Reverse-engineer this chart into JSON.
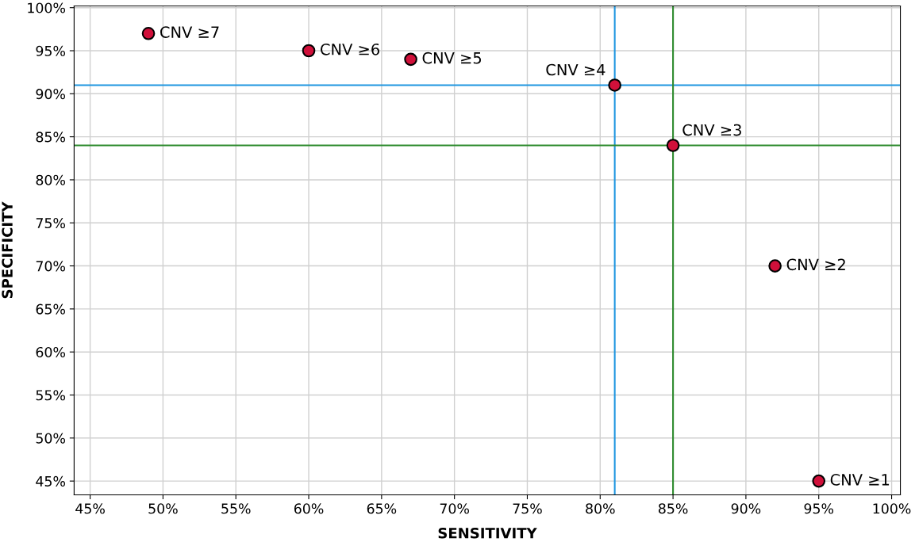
{
  "chart_data": {
    "type": "scatter",
    "xlabel": "SENSITIVITY",
    "ylabel": "SPECIFICITY",
    "series": [
      {
        "color": "#d0103a",
        "x": [
          49,
          60,
          67,
          81,
          85,
          92,
          95
        ],
        "values": [
          97,
          95,
          94,
          91,
          84,
          70,
          45
        ]
      }
    ],
    "marker": "circle",
    "annotations": [
      {
        "text": "CNV ≥7",
        "x": 49,
        "y": 97
      },
      {
        "text": "CNV ≥6",
        "x": 60,
        "y": 95
      },
      {
        "text": "CNV ≥5",
        "x": 67,
        "y": 94
      },
      {
        "text": "CNV ≥4",
        "x": 81,
        "y": 91
      },
      {
        "text": "CNV ≥3",
        "x": 85,
        "y": 84
      },
      {
        "text": "CNV ≥2",
        "x": 92,
        "y": 70
      },
      {
        "text": "CNV ≥1",
        "x": 95,
        "y": 45
      }
    ],
    "ref_lines": [
      {
        "axis": "x",
        "value": 81,
        "color": "#1f96e0"
      },
      {
        "axis": "y",
        "value": 91,
        "color": "#1f96e0"
      },
      {
        "axis": "x",
        "value": 85,
        "color": "#2e8b2e"
      },
      {
        "axis": "y",
        "value": 84,
        "color": "#2e8b2e"
      }
    ],
    "xlim": [
      43.9,
      100.6
    ],
    "ylim": [
      43.4,
      100.2
    ],
    "xticks": [
      {
        "value": 45,
        "label": "45%"
      },
      {
        "value": 50,
        "label": "50%"
      },
      {
        "value": 55,
        "label": "55%"
      },
      {
        "value": 60,
        "label": "60%"
      },
      {
        "value": 65,
        "label": "65%"
      },
      {
        "value": 70,
        "label": "70%"
      },
      {
        "value": 75,
        "label": "75%"
      },
      {
        "value": 80,
        "label": "80%"
      },
      {
        "value": 85,
        "label": "85%"
      },
      {
        "value": 90,
        "label": "90%"
      },
      {
        "value": 95,
        "label": "95%"
      },
      {
        "value": 100,
        "label": "100%"
      }
    ],
    "yticks": [
      {
        "value": 45,
        "label": "45%"
      },
      {
        "value": 50,
        "label": "50%"
      },
      {
        "value": 55,
        "label": "55%"
      },
      {
        "value": 60,
        "label": "60%"
      },
      {
        "value": 65,
        "label": "65%"
      },
      {
        "value": 70,
        "label": "70%"
      },
      {
        "value": 75,
        "label": "75%"
      },
      {
        "value": 80,
        "label": "80%"
      },
      {
        "value": 85,
        "label": "85%"
      },
      {
        "value": 90,
        "label": "90%"
      },
      {
        "value": 95,
        "label": "95%"
      },
      {
        "value": 100,
        "label": "100%"
      }
    ],
    "grid": true
  }
}
